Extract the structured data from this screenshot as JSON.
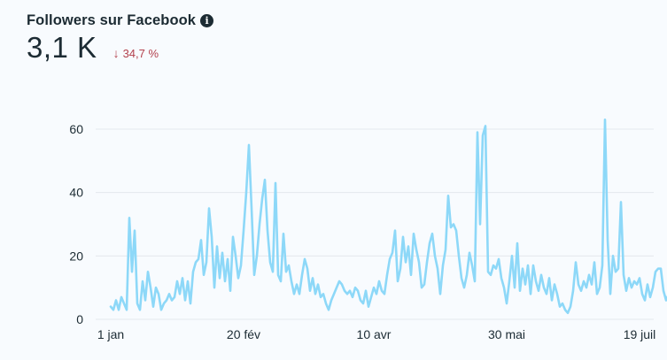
{
  "header": {
    "title": "Followers sur Facebook",
    "info_icon": "info-icon",
    "value": "3,1 K",
    "change": "34,7 %",
    "change_direction": "down",
    "change_color": "#b3414d"
  },
  "chart_data": {
    "type": "line",
    "title": "Followers sur Facebook",
    "xlabel": "",
    "ylabel": "",
    "ylim": [
      0,
      60
    ],
    "yticks": [
      0,
      20,
      40,
      60
    ],
    "xtick_labels": [
      "1 jan",
      "20 fév",
      "10 avr",
      "30 mai",
      "19 juil"
    ],
    "xtick_days": [
      0,
      50,
      99,
      149,
      199
    ],
    "x_range": [
      0,
      201
    ],
    "line_color": "#8dd8f8",
    "grid": true,
    "series": [
      {
        "name": "Followers",
        "values": [
          4,
          3,
          6,
          3,
          7,
          5,
          3,
          32,
          15,
          28,
          5,
          3,
          12,
          6,
          15,
          10,
          4,
          10,
          8,
          3,
          5,
          6,
          8,
          6,
          7,
          12,
          8,
          13,
          6,
          12,
          5,
          15,
          18,
          19,
          25,
          14,
          18,
          35,
          26,
          10,
          23,
          13,
          21,
          12,
          19,
          9,
          26,
          20,
          13,
          17,
          28,
          40,
          55,
          35,
          14,
          20,
          30,
          38,
          44,
          28,
          18,
          15,
          43,
          14,
          12,
          27,
          15,
          17,
          12,
          8,
          11,
          8,
          14,
          19,
          16,
          9,
          13,
          8,
          11,
          7,
          8,
          5,
          3,
          6,
          8,
          10,
          12,
          11,
          9,
          8,
          9,
          7,
          10,
          9,
          6,
          5,
          9,
          4,
          7,
          10,
          8,
          12,
          9,
          8,
          14,
          19,
          21,
          28,
          12,
          16,
          26,
          18,
          23,
          14,
          27,
          22,
          18,
          10,
          11,
          18,
          24,
          27,
          20,
          16,
          8,
          17,
          22,
          39,
          29,
          30,
          28,
          20,
          13,
          10,
          14,
          21,
          17,
          12,
          59,
          30,
          58,
          61,
          15,
          14,
          17,
          16,
          19,
          13,
          10,
          5,
          12,
          20,
          10,
          24,
          9,
          16,
          11,
          17,
          8,
          17,
          12,
          9,
          14,
          10,
          8,
          13,
          6,
          11,
          8,
          4,
          5,
          3,
          2,
          4,
          9,
          18,
          11,
          9,
          12,
          10,
          14,
          11,
          18,
          8,
          10,
          17,
          63,
          25,
          8,
          20,
          15,
          16,
          37,
          14,
          9,
          13,
          10,
          12,
          11,
          13,
          8,
          6,
          11,
          7,
          10,
          15,
          16,
          16,
          9,
          6,
          8,
          11
        ]
      }
    ]
  }
}
